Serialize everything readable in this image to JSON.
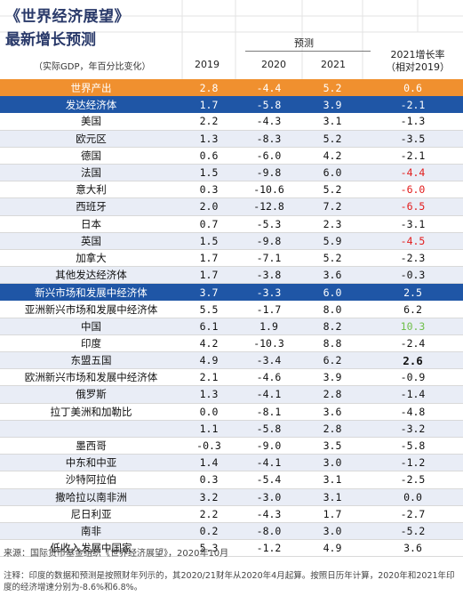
{
  "header": {
    "title_line1": "《世界经济展望》",
    "title_line2": "最新增长预测",
    "subtitle": "（实际GDP，年百分比变化）",
    "forecast_label": "预测",
    "col_2019": "2019",
    "col_2020": "2020",
    "col_2021": "2021",
    "col_growth_line1": "2021增长率",
    "col_growth_line2": "（相对2019）"
  },
  "rows": [
    {
      "name": "世界产出",
      "v2019": "2.8",
      "v2020": "-4.4",
      "v2021": "5.2",
      "vg": "0.6",
      "style": "orange"
    },
    {
      "name": "发达经济体",
      "v2019": "1.7",
      "v2020": "-5.8",
      "v2021": "3.9",
      "vg": "-2.1",
      "style": "blue"
    },
    {
      "name": "美国",
      "v2019": "2.2",
      "v2020": "-4.3",
      "v2021": "3.1",
      "vg": "-1.3",
      "style": "odd"
    },
    {
      "name": "欧元区",
      "v2019": "1.3",
      "v2020": "-8.3",
      "v2021": "5.2",
      "vg": "-3.5",
      "style": "even"
    },
    {
      "name": "德国",
      "v2019": "0.6",
      "v2020": "-6.0",
      "v2021": "4.2",
      "vg": "-2.1",
      "style": "odd"
    },
    {
      "name": "法国",
      "v2019": "1.5",
      "v2020": "-9.8",
      "v2021": "6.0",
      "vg": "-4.4",
      "style": "even",
      "vg_color": "red"
    },
    {
      "name": "意大利",
      "v2019": "0.3",
      "v2020": "-10.6",
      "v2021": "5.2",
      "vg": "-6.0",
      "style": "odd",
      "vg_color": "red"
    },
    {
      "name": "西班牙",
      "v2019": "2.0",
      "v2020": "-12.8",
      "v2021": "7.2",
      "vg": "-6.5",
      "style": "even",
      "vg_color": "red"
    },
    {
      "name": "日本",
      "v2019": "0.7",
      "v2020": "-5.3",
      "v2021": "2.3",
      "vg": "-3.1",
      "style": "odd"
    },
    {
      "name": "英国",
      "v2019": "1.5",
      "v2020": "-9.8",
      "v2021": "5.9",
      "vg": "-4.5",
      "style": "even",
      "vg_color": "red"
    },
    {
      "name": "加拿大",
      "v2019": "1.7",
      "v2020": "-7.1",
      "v2021": "5.2",
      "vg": "-2.3",
      "style": "odd"
    },
    {
      "name": "其他发达经济体",
      "v2019": "1.7",
      "v2020": "-3.8",
      "v2021": "3.6",
      "vg": "-0.3",
      "style": "even"
    },
    {
      "name": "新兴市场和发展中经济体",
      "v2019": "3.7",
      "v2020": "-3.3",
      "v2021": "6.0",
      "vg": "2.5",
      "style": "blue"
    },
    {
      "name": "亚洲新兴市场和发展中经济体",
      "v2019": "5.5",
      "v2020": "-1.7",
      "v2021": "8.0",
      "vg": "6.2",
      "style": "odd"
    },
    {
      "name": "中国",
      "v2019": "6.1",
      "v2020": "1.9",
      "v2021": "8.2",
      "vg": "10.3",
      "style": "even",
      "vg_color": "green"
    },
    {
      "name": "印度",
      "v2019": "4.2",
      "v2020": "-10.3",
      "v2021": "8.8",
      "vg": "-2.4",
      "style": "odd"
    },
    {
      "name": "东盟五国",
      "v2019": "4.9",
      "v2020": "-3.4",
      "v2021": "6.2",
      "vg": "2.6",
      "style": "even",
      "vg_bold": true
    },
    {
      "name": "欧洲新兴市场和发展中经济体",
      "v2019": "2.1",
      "v2020": "-4.6",
      "v2021": "3.9",
      "vg": "-0.9",
      "style": "odd"
    },
    {
      "name": "俄罗斯",
      "v2019": "1.3",
      "v2020": "-4.1",
      "v2021": "2.8",
      "vg": "-1.4",
      "style": "even"
    },
    {
      "name": "拉丁美洲和加勒比",
      "v2019": "0.0",
      "v2020": "-8.1",
      "v2021": "3.6",
      "vg": "-4.8",
      "style": "odd"
    },
    {
      "name": "",
      "v2019": "1.1",
      "v2020": "-5.8",
      "v2021": "2.8",
      "vg": "-3.2",
      "style": "even"
    },
    {
      "name": "墨西哥",
      "v2019": "-0.3",
      "v2020": "-9.0",
      "v2021": "3.5",
      "vg": "-5.8",
      "style": "odd"
    },
    {
      "name": "中东和中亚",
      "v2019": "1.4",
      "v2020": "-4.1",
      "v2021": "3.0",
      "vg": "-1.2",
      "style": "even"
    },
    {
      "name": "沙特阿拉伯",
      "v2019": "0.3",
      "v2020": "-5.4",
      "v2021": "3.1",
      "vg": "-2.5",
      "style": "odd"
    },
    {
      "name": "撒哈拉以南非洲",
      "v2019": "3.2",
      "v2020": "-3.0",
      "v2021": "3.1",
      "vg": "0.0",
      "style": "even"
    },
    {
      "name": "尼日利亚",
      "v2019": "2.2",
      "v2020": "-4.3",
      "v2021": "1.7",
      "vg": "-2.7",
      "style": "odd"
    },
    {
      "name": "南非",
      "v2019": "0.2",
      "v2020": "-8.0",
      "v2021": "3.0",
      "vg": "-5.2",
      "style": "even"
    },
    {
      "name": "低收入发展中国家",
      "v2019": "5.3",
      "v2020": "-1.2",
      "v2021": "4.9",
      "vg": "3.6",
      "style": "odd"
    }
  ],
  "footer": {
    "source": "来源：国际货币基金组织《世界经济展望》，2020年10月",
    "note": "注释：印度的数据和预测是按照财年列示的，其2020/21财年从2020年4月起算。按照日历年计算，2020年和2021年印度的经济增速分别为-8.6%和6.8%。"
  },
  "colors": {
    "orange": "#f0902f",
    "blue": "#1f56a6",
    "red": "#e21b1b",
    "green": "#6fbf4a",
    "stripe": "#e9edf6"
  }
}
